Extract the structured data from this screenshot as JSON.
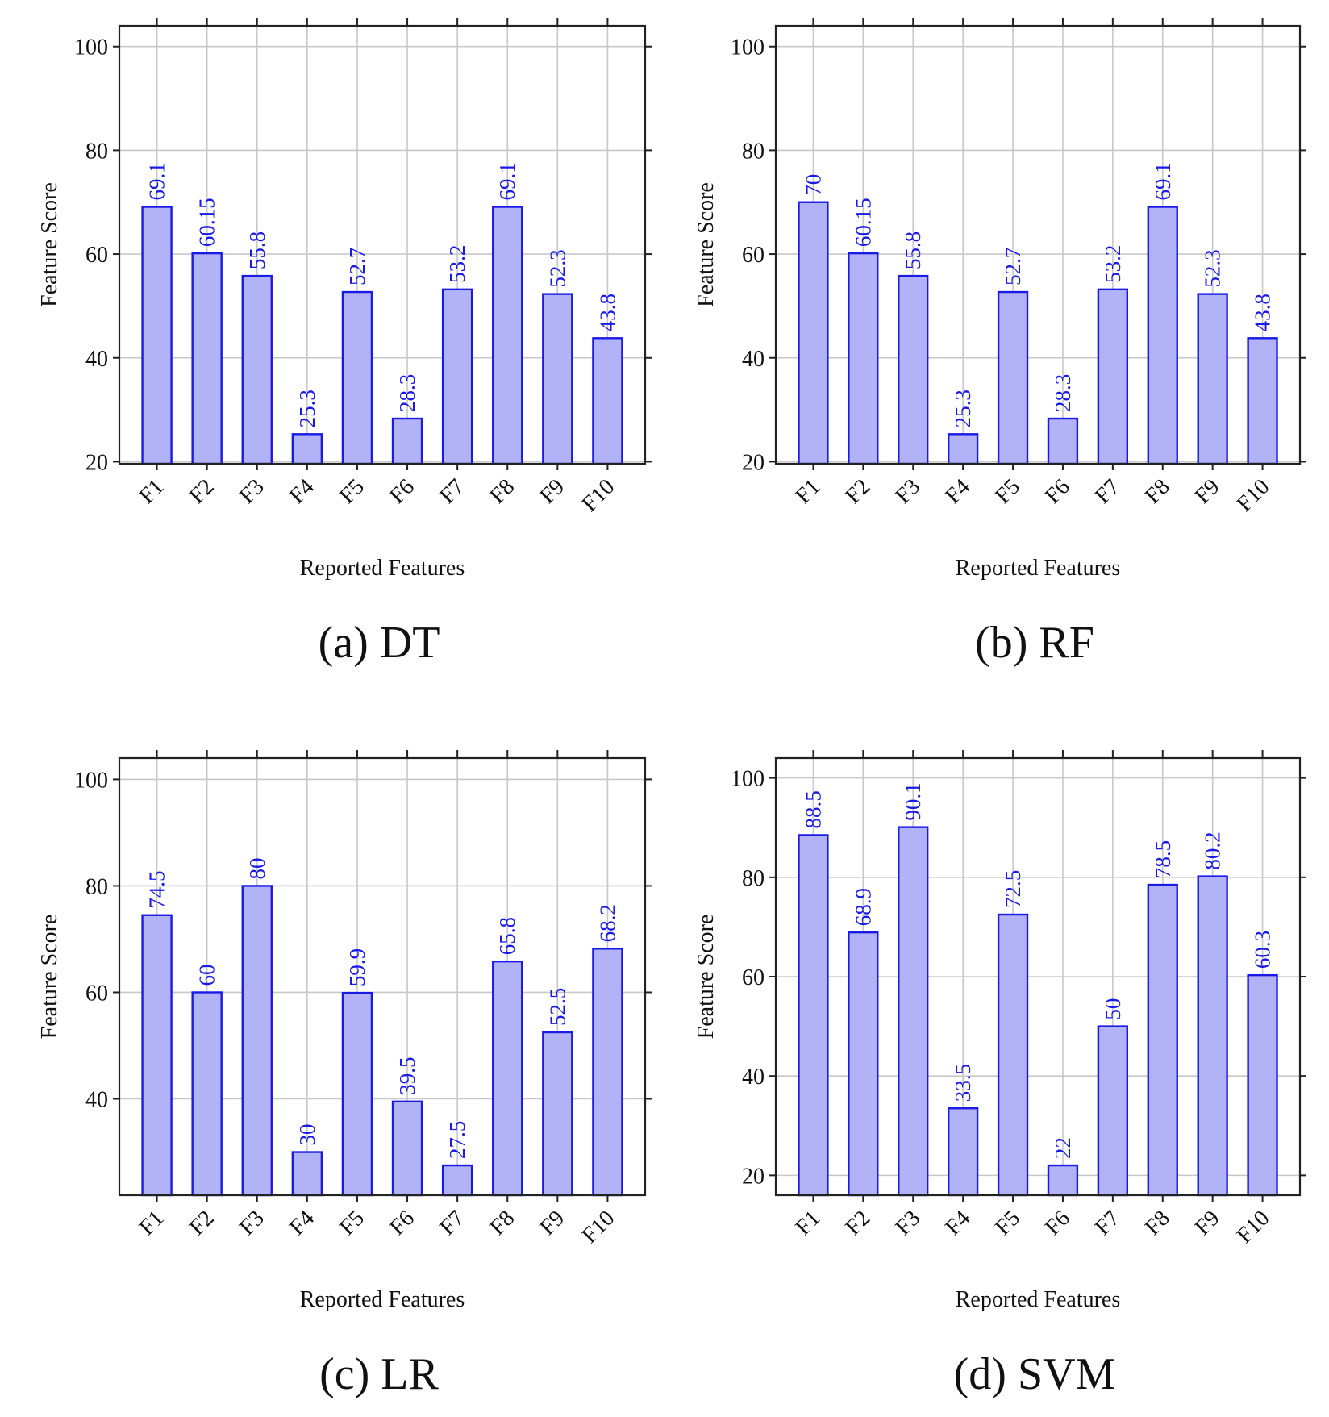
{
  "figure": {
    "colors": {
      "bar_fill": "#b2b2f7",
      "bar_stroke": "#1a1ae6",
      "label": "#1a1ae6",
      "grid": "#c8c8c8",
      "frame": "#222222"
    }
  },
  "chart_data": [
    {
      "type": "bar",
      "caption": "(a) DT",
      "categories": [
        "F1",
        "F2",
        "F3",
        "F4",
        "F5",
        "F6",
        "F7",
        "F8",
        "F9",
        "F10"
      ],
      "values": [
        69.1,
        60.15,
        55.8,
        25.3,
        52.7,
        28.3,
        53.2,
        69.1,
        52.3,
        43.8
      ],
      "data_labels": [
        "69.1",
        "60.15",
        "55.8",
        "25.3",
        "52.7",
        "28.3",
        "53.2",
        "69.1",
        "52.3",
        "43.8"
      ],
      "xlabel": "Reported Features",
      "ylabel": "Feature Score",
      "ylim": [
        19.6,
        104
      ],
      "yticks": [
        20,
        40,
        60,
        80,
        100
      ],
      "grid": true
    },
    {
      "type": "bar",
      "caption": "(b) RF",
      "categories": [
        "F1",
        "F2",
        "F3",
        "F4",
        "F5",
        "F6",
        "F7",
        "F8",
        "F9",
        "F10"
      ],
      "values": [
        70,
        60.15,
        55.8,
        25.3,
        52.7,
        28.3,
        53.2,
        69.1,
        52.3,
        43.8
      ],
      "data_labels": [
        "70",
        "60.15",
        "55.8",
        "25.3",
        "52.7",
        "28.3",
        "53.2",
        "69.1",
        "52.3",
        "43.8"
      ],
      "xlabel": "Reported Features",
      "ylabel": "Feature Score",
      "ylim": [
        19.6,
        104
      ],
      "yticks": [
        20,
        40,
        60,
        80,
        100
      ],
      "grid": true
    },
    {
      "type": "bar",
      "caption": "(c) LR",
      "categories": [
        "F1",
        "F2",
        "F3",
        "F4",
        "F5",
        "F6",
        "F7",
        "F8",
        "F9",
        "F10"
      ],
      "values": [
        74.5,
        60,
        80,
        30,
        59.9,
        39.5,
        27.5,
        65.8,
        52.5,
        68.2
      ],
      "data_labels": [
        "74.5",
        "60",
        "80",
        "30",
        "59.9",
        "39.5",
        "27.5",
        "65.8",
        "52.5",
        "68.2"
      ],
      "xlabel": "Reported Features",
      "ylabel": "Feature Score",
      "ylim": [
        21.9,
        104
      ],
      "yticks": [
        40,
        60,
        80,
        100
      ],
      "grid": true
    },
    {
      "type": "bar",
      "caption": "(d) SVM",
      "categories": [
        "F1",
        "F2",
        "F3",
        "F4",
        "F5",
        "F6",
        "F7",
        "F8",
        "F9",
        "F10"
      ],
      "values": [
        88.5,
        68.9,
        90.1,
        33.5,
        72.5,
        22,
        50,
        78.5,
        80.2,
        60.3
      ],
      "data_labels": [
        "88.5",
        "68.9",
        "90.1",
        "33.5",
        "72.5",
        "22",
        "50",
        "78.5",
        "80.2",
        "60.3"
      ],
      "xlabel": "Reported Features",
      "ylabel": "Feature Score",
      "ylim": [
        16,
        104
      ],
      "yticks": [
        20,
        40,
        60,
        80,
        100
      ],
      "grid": true
    }
  ]
}
